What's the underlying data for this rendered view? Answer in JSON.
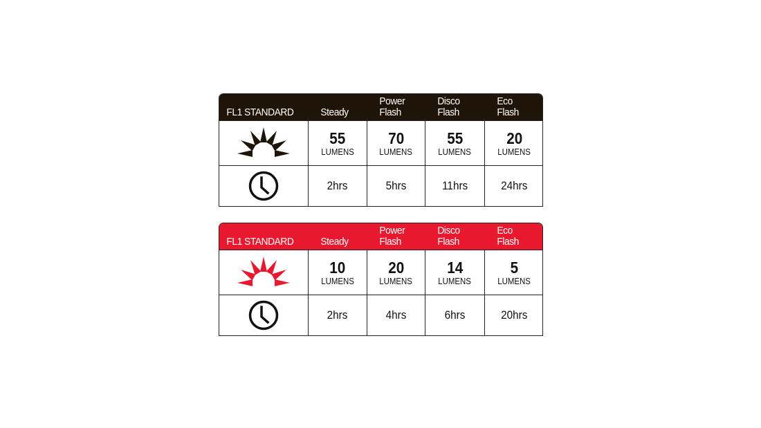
{
  "colors": {
    "dark": "#1e1408",
    "red": "#e8192f"
  },
  "tables": [
    {
      "title": "FL1 STANDARD",
      "header_color": "dark",
      "icon_color": "#1e1408",
      "modes": [
        {
          "l1": "",
          "l2": "Steady"
        },
        {
          "l1": "Power",
          "l2": "Flash"
        },
        {
          "l1": "Disco",
          "l2": "Flash"
        },
        {
          "l1": "Eco",
          "l2": "Flash"
        }
      ],
      "lumens": [
        "55",
        "70",
        "55",
        "20"
      ],
      "unit": "LUMENS",
      "runtime": [
        "2hrs",
        "5hrs",
        "11hrs",
        "24hrs"
      ],
      "icons": {
        "brightness": "sun-rays-icon",
        "runtime": "clock-icon"
      }
    },
    {
      "title": "FL1 STANDARD",
      "header_color": "red",
      "icon_color": "#e8192f",
      "modes": [
        {
          "l1": "",
          "l2": "Steady"
        },
        {
          "l1": "Power",
          "l2": "Flash"
        },
        {
          "l1": "Disco",
          "l2": "Flash"
        },
        {
          "l1": "Eco",
          "l2": "Flash"
        }
      ],
      "lumens": [
        "10",
        "20",
        "14",
        "5"
      ],
      "unit": "LUMENS",
      "runtime": [
        "2hrs",
        "4hrs",
        "6hrs",
        "20hrs"
      ],
      "icons": {
        "brightness": "sun-rays-icon",
        "runtime": "clock-icon"
      }
    }
  ]
}
